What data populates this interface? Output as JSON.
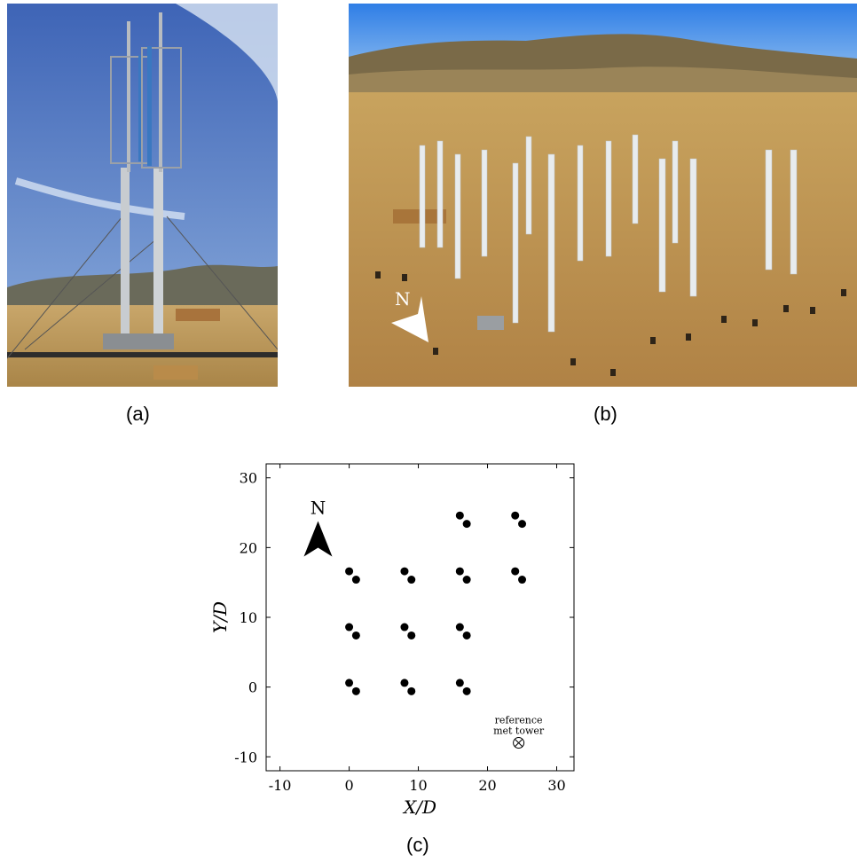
{
  "panels": {
    "a": {
      "caption": "(a)"
    },
    "b": {
      "caption": "(b)",
      "north_label": "N"
    },
    "c": {
      "caption": "(c)"
    }
  },
  "colors": {
    "sky": "#4e79c4",
    "ground": "#c49a55",
    "marker": "#000000"
  },
  "chart_data": {
    "type": "scatter",
    "xlabel": "X/D",
    "ylabel": "Y/D",
    "xlim": [
      -12,
      32.5
    ],
    "ylim": [
      -12,
      32
    ],
    "xticks": [
      -10,
      0,
      10,
      20,
      30
    ],
    "yticks": [
      -10,
      0,
      10,
      20,
      30
    ],
    "grid": false,
    "series": [
      {
        "marker": "filled-circle",
        "points": [
          [
            0,
            0.6
          ],
          [
            1,
            -0.6
          ],
          [
            8,
            0.6
          ],
          [
            9,
            -0.6
          ],
          [
            16,
            0.6
          ],
          [
            17,
            -0.6
          ],
          [
            0,
            8.6
          ],
          [
            1,
            7.4
          ],
          [
            8,
            8.6
          ],
          [
            9,
            7.4
          ],
          [
            16,
            8.6
          ],
          [
            17,
            7.4
          ],
          [
            0,
            16.6
          ],
          [
            1,
            15.4
          ],
          [
            8,
            16.6
          ],
          [
            9,
            15.4
          ],
          [
            16,
            16.6
          ],
          [
            17,
            15.4
          ],
          [
            24,
            16.6
          ],
          [
            25,
            15.4
          ],
          [
            16,
            24.6
          ],
          [
            17,
            23.4
          ],
          [
            24,
            24.6
          ],
          [
            25,
            23.4
          ]
        ]
      }
    ],
    "annotations": {
      "north_label": "N",
      "north_arrow": {
        "x": -4.5,
        "y": 21
      },
      "met_tower": {
        "label_line1": "reference",
        "label_line2": "met tower",
        "x": 24.5,
        "y": -8
      }
    }
  }
}
